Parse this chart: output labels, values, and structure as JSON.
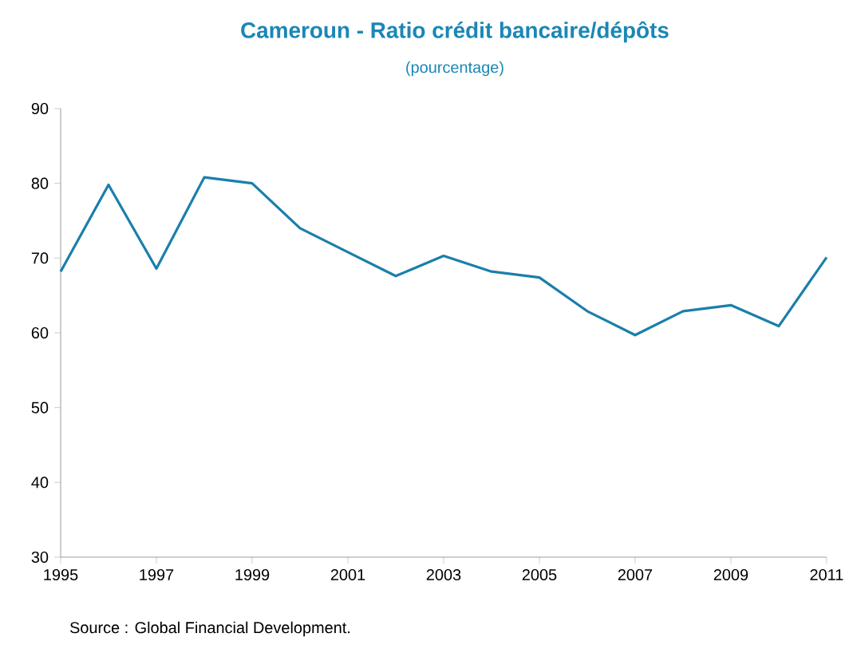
{
  "chart_data": {
    "type": "line",
    "title": "Cameroun - Ratio crédit bancaire/dépôts",
    "subtitle": "(pourcentage)",
    "annotations": [
      "Source : Global Financial Development."
    ],
    "x": [
      1995,
      1996,
      1997,
      1998,
      1999,
      2000,
      2001,
      2002,
      2003,
      2004,
      2005,
      2006,
      2007,
      2008,
      2009,
      2010,
      2011
    ],
    "series": [
      {
        "color": "#1a7fab",
        "values": [
          68.2,
          79.8,
          68.6,
          80.8,
          80.0,
          74.0,
          70.8,
          67.6,
          70.3,
          68.2,
          67.4,
          62.9,
          59.7,
          62.9,
          63.7,
          60.9,
          70.1
        ]
      }
    ],
    "xlim": [
      1995,
      2011
    ],
    "xticks": [
      1995,
      1997,
      1999,
      2001,
      2003,
      2005,
      2007,
      2009,
      2011
    ],
    "ylim": [
      30,
      90
    ],
    "yticks": [
      30,
      40,
      50,
      60,
      70,
      80,
      90
    ],
    "marker": "none",
    "line_style": "solid"
  }
}
